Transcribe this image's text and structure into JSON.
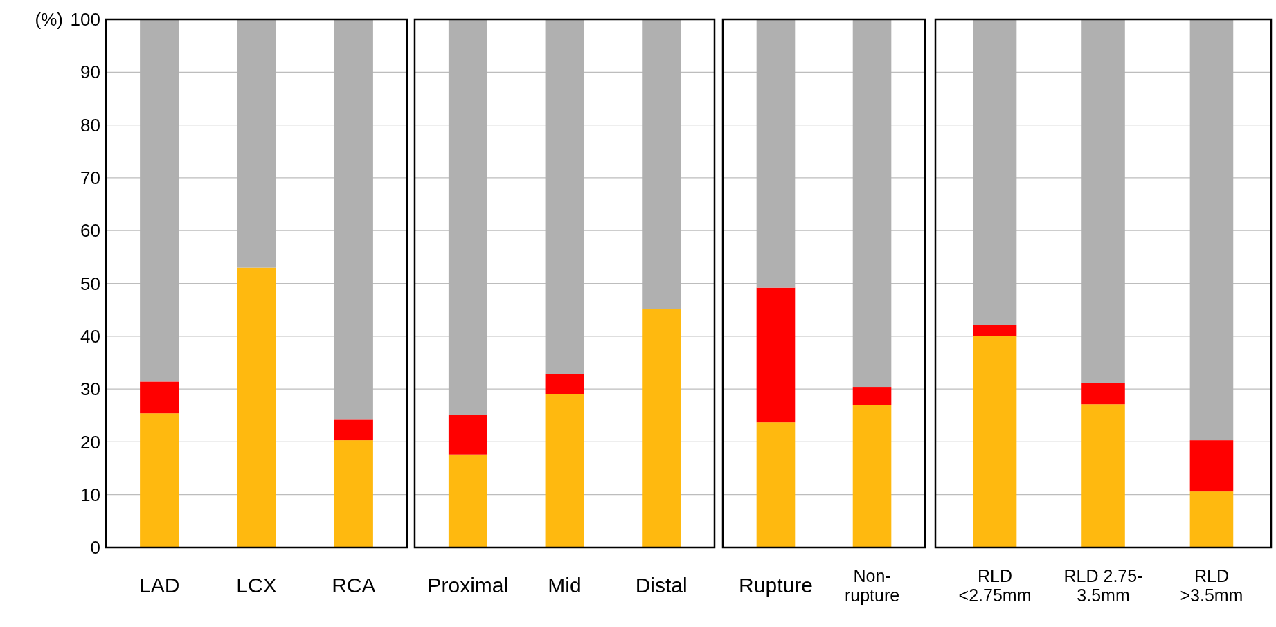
{
  "chart_data": [
    {
      "type": "bar",
      "ylabel": "(%)",
      "categories": [
        "LAD",
        "LCX",
        "RCA"
      ],
      "stacked": true,
      "ylim": [
        0,
        100
      ],
      "yticks": [
        0,
        10,
        20,
        30,
        40,
        50,
        60,
        70,
        80,
        90,
        100
      ],
      "grid": "y",
      "series": [
        {
          "color": "#ffb90f",
          "values": [
            25.4,
            53.0,
            20.3
          ]
        },
        {
          "color": "#ff0000",
          "values": [
            6.0,
            0,
            3.9
          ]
        },
        {
          "color": "#b0b0b0",
          "values": [
            68.6,
            47.0,
            75.8
          ]
        }
      ]
    },
    {
      "type": "bar",
      "categories": [
        "Proximal",
        "Mid",
        "Distal"
      ],
      "stacked": true,
      "ylim": [
        0,
        100
      ],
      "yticks": [
        0,
        10,
        20,
        30,
        40,
        50,
        60,
        70,
        80,
        90,
        100
      ],
      "grid": "y",
      "tick_labels": "x",
      "series": [
        {
          "color": "#ffb90f",
          "values": [
            17.6,
            29.0,
            45.1
          ]
        },
        {
          "color": "#ff0000",
          "values": [
            7.5,
            3.8,
            0
          ]
        },
        {
          "color": "#b0b0b0",
          "values": [
            74.9,
            67.2,
            54.9
          ]
        }
      ]
    },
    {
      "type": "bar",
      "categories": [
        "Rupture",
        "Non-rupture"
      ],
      "stacked": true,
      "ylim": [
        0,
        100
      ],
      "yticks": [
        0,
        10,
        20,
        30,
        40,
        50,
        60,
        70,
        80,
        90,
        100
      ],
      "grid": "y",
      "tick_labels": "x",
      "series": [
        {
          "color": "#ffb90f",
          "values": [
            23.7,
            27.0
          ]
        },
        {
          "color": "#ff0000",
          "values": [
            25.5,
            3.4
          ]
        },
        {
          "color": "#b0b0b0",
          "values": [
            50.8,
            69.6
          ]
        }
      ]
    },
    {
      "type": "bar",
      "categories": [
        "RLD <2.75mm",
        "RLD 2.75-3.5mm",
        "RLD >3.5mm"
      ],
      "stacked": true,
      "ylim": [
        0,
        100
      ],
      "yticks": [
        0,
        10,
        20,
        30,
        40,
        50,
        60,
        70,
        80,
        90,
        100
      ],
      "grid": "y",
      "tick_labels": "x",
      "series": [
        {
          "color": "#ffb90f",
          "values": [
            40.1,
            27.1,
            10.6
          ]
        },
        {
          "color": "#ff0000",
          "values": [
            2.1,
            4.0,
            9.7
          ]
        },
        {
          "color": "#b0b0b0",
          "values": [
            57.8,
            68.9,
            79.7
          ]
        }
      ]
    }
  ]
}
